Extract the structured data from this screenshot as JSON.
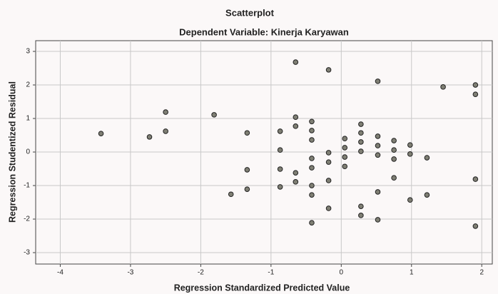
{
  "chart_data": {
    "type": "scatter",
    "title": "Scatterplot",
    "subtitle": "Dependent Variable: Kinerja Karyawan",
    "x_label": "Regression Standardized Predicted Value",
    "y_label": "Regression Studentized Residual",
    "x": [
      -3.42,
      -2.73,
      -2.5,
      -2.5,
      -1.81,
      -1.34,
      -1.34,
      -1.34,
      -1.57,
      -0.87,
      -0.87,
      -0.87,
      -0.87,
      -0.65,
      -0.65,
      -0.65,
      -0.65,
      -0.65,
      -0.42,
      -0.42,
      -0.42,
      -0.42,
      -0.42,
      -0.42,
      -0.42,
      -0.42,
      -0.18,
      -0.18,
      -0.18,
      -0.18,
      -0.18,
      0.05,
      0.05,
      0.05,
      0.05,
      0.28,
      0.28,
      0.28,
      0.28,
      0.28,
      0.28,
      0.52,
      0.52,
      0.52,
      0.52,
      0.52,
      0.52,
      0.75,
      0.75,
      0.75,
      0.75,
      0.98,
      0.98,
      0.98,
      1.22,
      1.22,
      1.45,
      1.91,
      1.91,
      1.91,
      1.91
    ],
    "values": [
      0.55,
      0.45,
      1.19,
      0.62,
      1.11,
      0.57,
      -0.53,
      -1.11,
      -1.26,
      0.62,
      0.06,
      -0.51,
      -1.04,
      1.04,
      0.77,
      2.68,
      -0.62,
      -0.89,
      0.91,
      0.64,
      0.36,
      -0.19,
      -0.47,
      -1.0,
      -1.28,
      -2.11,
      2.45,
      -0.02,
      -0.3,
      -0.85,
      -1.68,
      0.4,
      0.13,
      -0.15,
      -0.43,
      0.83,
      0.57,
      0.3,
      0.02,
      -1.62,
      -1.89,
      2.11,
      0.47,
      0.19,
      -0.09,
      -1.19,
      -2.02,
      0.34,
      0.06,
      -0.21,
      -0.77,
      0.21,
      -0.06,
      -1.43,
      -0.17,
      -1.28,
      1.94,
      2.0,
      1.72,
      -0.81,
      -2.21
    ],
    "color": "#7f7f74",
    "xlim": [
      -4.35,
      2.15
    ],
    "ylim": [
      -3.34,
      3.32
    ],
    "xticks": [
      -4,
      -3,
      -2,
      -1,
      0,
      1,
      2
    ],
    "yticks": [
      3,
      2,
      1,
      0,
      -1,
      -2,
      -3
    ],
    "grid": true
  }
}
